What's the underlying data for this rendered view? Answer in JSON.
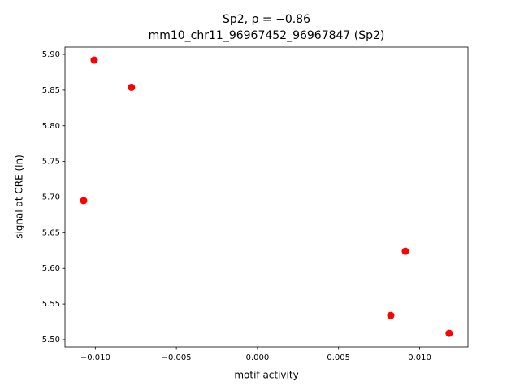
{
  "chart_data": {
    "type": "scatter",
    "title": "Sp2, ρ = −0.86",
    "subtitle": "mm10_chr11_96967452_96967847 (Sp2)",
    "x_label": "motif activity",
    "y_label": "signal at CRE (ln)",
    "color": "#ff0000",
    "x": [
      -0.01007,
      -0.00777,
      -0.01072,
      0.00912,
      0.00822,
      0.01182
    ],
    "y": [
      5.892,
      5.854,
      5.695,
      5.624,
      5.534,
      5.509
    ],
    "xlim": [
      -0.01187,
      0.01298
    ],
    "ylim": [
      5.4897,
      5.9103
    ],
    "xticks": [
      {
        "value": -0.01,
        "label": "−0.010"
      },
      {
        "value": -0.005,
        "label": "−0.005"
      },
      {
        "value": 0,
        "label": "0.000"
      },
      {
        "value": 0.005,
        "label": "0.005"
      },
      {
        "value": 0.01,
        "label": "0.010"
      }
    ],
    "yticks": [
      {
        "value": 5.5,
        "label": "5.50"
      },
      {
        "value": 5.55,
        "label": "5.55"
      },
      {
        "value": 5.6,
        "label": "5.60"
      },
      {
        "value": 5.65,
        "label": "5.65"
      },
      {
        "value": 5.7,
        "label": "5.70"
      },
      {
        "value": 5.75,
        "label": "5.75"
      },
      {
        "value": 5.8,
        "label": "5.80"
      },
      {
        "value": 5.85,
        "label": "5.85"
      },
      {
        "value": 5.9,
        "label": "5.90"
      }
    ],
    "grid": false
  }
}
